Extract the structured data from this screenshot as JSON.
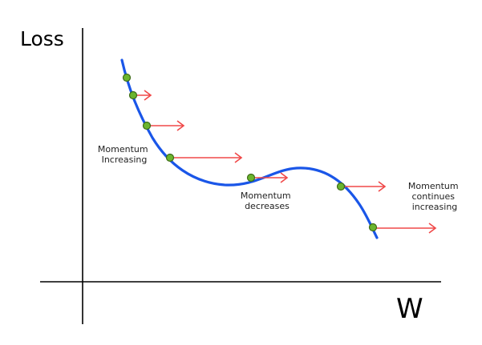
{
  "diagram": {
    "y_axis_label": "Loss",
    "x_axis_label": "W",
    "annotations": {
      "increasing": [
        "Momentum",
        "Increasing"
      ],
      "decreases": [
        "Momentum",
        "decreases"
      ],
      "continues": [
        "Momentum",
        "continues",
        "increasing"
      ]
    },
    "colors": {
      "curve": "#1a56e8",
      "arrow": "#f04848",
      "point_fill": "#6bb52e",
      "point_stroke": "#3d6b16",
      "axis": "#000000"
    },
    "points_count": 7
  }
}
